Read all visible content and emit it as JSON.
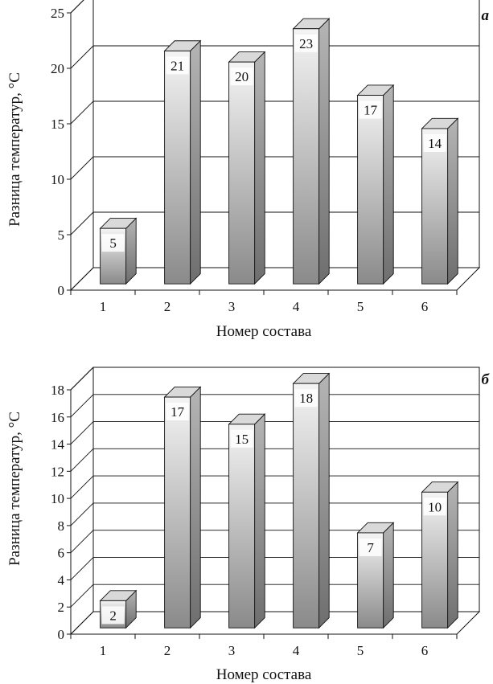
{
  "chart_data": [
    {
      "type": "bar",
      "panel_label": "а",
      "categories": [
        "1",
        "2",
        "3",
        "4",
        "5",
        "6"
      ],
      "values": [
        5,
        21,
        20,
        23,
        17,
        14
      ],
      "data_labels": [
        "5",
        "21",
        "20",
        "23",
        "17",
        "14"
      ],
      "yticks": [
        "0",
        "5",
        "10",
        "15",
        "20",
        "25"
      ],
      "ylim": [
        0,
        25
      ],
      "xlabel": "Номер состава",
      "ylabel": "Разница температур, °C",
      "grid": true,
      "style": "3d"
    },
    {
      "type": "bar",
      "panel_label": "б",
      "categories": [
        "1",
        "2",
        "3",
        "4",
        "5",
        "6"
      ],
      "values": [
        2,
        17,
        15,
        18,
        7,
        10
      ],
      "data_labels": [
        "2",
        "17",
        "15",
        "18",
        "7",
        "10"
      ],
      "yticks": [
        "0",
        "2",
        "4",
        "6",
        "8",
        "10",
        "12",
        "14",
        "16",
        "18"
      ],
      "ylim": [
        0,
        18
      ],
      "xlabel": "Номер состава",
      "ylabel": "Разница температур, °C",
      "grid": true,
      "style": "3d"
    }
  ],
  "colors": {
    "bar_light": "#f4f4f4",
    "bar_dark": "#8a8a8a",
    "bar_top": "#d9d9d9",
    "bar_side_light": "#b5b5b5",
    "bar_side_dark": "#6e6e6e",
    "line": "#111111",
    "label_bg": "#ffffff"
  }
}
